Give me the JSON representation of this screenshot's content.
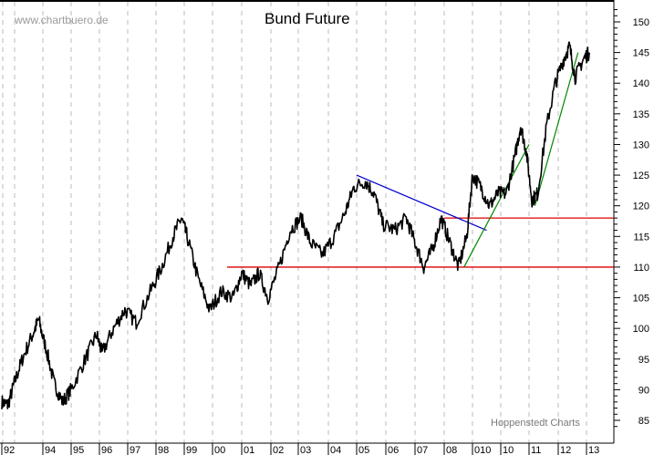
{
  "chart_data": {
    "type": "line",
    "title": "Bund Future",
    "watermark": "www.chartbuero.de",
    "credit": "Hoppenstedt Charts",
    "xlabel": "",
    "ylabel": "",
    "ylim": [
      84,
      152
    ],
    "y_ticks": [
      85,
      90,
      95,
      100,
      105,
      110,
      115,
      120,
      125,
      130,
      135,
      140,
      145,
      150
    ],
    "x_tick_labels": [
      "92",
      "94",
      "95",
      "96",
      "97",
      "98",
      "99",
      "00",
      "01",
      "02",
      "03",
      "04",
      "05",
      "06",
      "07",
      "08",
      "010",
      "10",
      "11",
      "12",
      "13"
    ],
    "grid": {
      "vertical": true,
      "horizontal": false,
      "style": "dashed",
      "color": "#bbbbbb"
    },
    "series": [
      {
        "name": "Bund Future",
        "color": "#000000",
        "points": [
          [
            1992.0,
            88
          ],
          [
            1992.3,
            87.5
          ],
          [
            1992.6,
            91
          ],
          [
            1993.0,
            95
          ],
          [
            1993.5,
            99
          ],
          [
            1993.8,
            101.5
          ],
          [
            1994.1,
            97
          ],
          [
            1994.4,
            91
          ],
          [
            1994.7,
            88
          ],
          [
            1995.0,
            90
          ],
          [
            1995.5,
            95
          ],
          [
            1995.9,
            99
          ],
          [
            1996.1,
            96
          ],
          [
            1996.5,
            100
          ],
          [
            1996.9,
            103
          ],
          [
            1997.3,
            101
          ],
          [
            1997.8,
            106
          ],
          [
            1998.2,
            110
          ],
          [
            1998.6,
            115
          ],
          [
            1998.9,
            118
          ],
          [
            1999.1,
            115
          ],
          [
            1999.5,
            108
          ],
          [
            1999.9,
            103
          ],
          [
            2000.3,
            106
          ],
          [
            2000.7,
            105
          ],
          [
            2001.0,
            109
          ],
          [
            2001.3,
            107
          ],
          [
            2001.6,
            109
          ],
          [
            2001.9,
            105
          ],
          [
            2002.3,
            110
          ],
          [
            2002.7,
            116
          ],
          [
            2003.1,
            118
          ],
          [
            2003.4,
            114
          ],
          [
            2003.8,
            112
          ],
          [
            2004.2,
            115
          ],
          [
            2004.6,
            119
          ],
          [
            2004.9,
            123
          ],
          [
            2005.3,
            124
          ],
          [
            2005.6,
            122
          ],
          [
            2005.9,
            117
          ],
          [
            2006.3,
            116
          ],
          [
            2006.7,
            118
          ],
          [
            2007.0,
            114
          ],
          [
            2007.3,
            110
          ],
          [
            2007.6,
            113
          ],
          [
            2007.9,
            118
          ],
          [
            2008.2,
            114
          ],
          [
            2008.5,
            110
          ],
          [
            2008.8,
            115
          ],
          [
            2009.0,
            125
          ],
          [
            2009.3,
            123
          ],
          [
            2009.6,
            120
          ],
          [
            2009.9,
            122
          ],
          [
            2010.2,
            122
          ],
          [
            2010.5,
            128
          ],
          [
            2010.7,
            133
          ],
          [
            2010.9,
            129
          ],
          [
            2011.1,
            121
          ],
          [
            2011.3,
            122
          ],
          [
            2011.6,
            133
          ],
          [
            2011.9,
            140
          ],
          [
            2012.2,
            144
          ],
          [
            2012.4,
            146
          ],
          [
            2012.6,
            141
          ],
          [
            2012.9,
            144
          ],
          [
            2013.1,
            145
          ]
        ]
      }
    ],
    "annotations": [
      {
        "type": "hline",
        "label": "support 110",
        "value": 110,
        "x_from": 2000.5,
        "x_to": 2013.3,
        "color": "#dd0000"
      },
      {
        "type": "hline",
        "label": "resistance 118",
        "value": 118,
        "x_from": 2008.0,
        "x_to": 2013.3,
        "color": "#dd0000"
      },
      {
        "type": "trendline",
        "label": "downtrend",
        "from": [
          2005.0,
          125
        ],
        "to": [
          2009.5,
          116
        ],
        "color": "#0000cc"
      },
      {
        "type": "trendline",
        "label": "uptrend 1",
        "from": [
          2008.7,
          110
        ],
        "to": [
          2011.0,
          130
        ],
        "color": "#008800"
      },
      {
        "type": "trendline",
        "label": "uptrend 2",
        "from": [
          2011.2,
          120
        ],
        "to": [
          2012.7,
          145
        ],
        "color": "#008800"
      }
    ]
  }
}
